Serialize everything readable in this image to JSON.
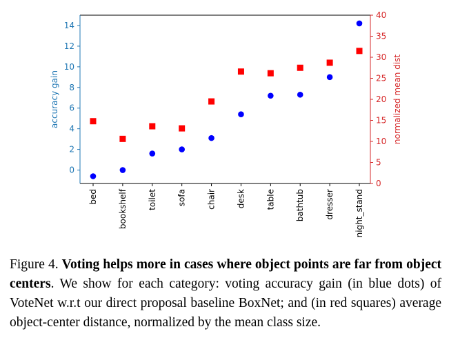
{
  "chart_data": {
    "type": "scatter",
    "categories": [
      "bed",
      "bookshelf",
      "toilet",
      "sofa",
      "chair",
      "desk",
      "table",
      "bathtub",
      "dresser",
      "night_stand"
    ],
    "series": [
      {
        "name": "accuracy gain",
        "axis": "left",
        "marker": "circle",
        "color": "#0000ff",
        "values": [
          -0.6,
          0.0,
          1.6,
          2.0,
          3.1,
          5.4,
          7.2,
          7.3,
          9.0,
          14.2
        ]
      },
      {
        "name": "normalized mean dist",
        "axis": "right",
        "marker": "square",
        "color": "#ff0000",
        "values": [
          14.8,
          10.6,
          13.6,
          13.1,
          19.5,
          26.6,
          26.2,
          27.5,
          28.7,
          31.5
        ]
      }
    ],
    "ylabel_left": "accuracy gain",
    "ylabel_right": "normalized mean dist",
    "ylim_left": [
      -1.3,
      15.0
    ],
    "ylim_right": [
      0,
      40
    ],
    "yticks_left": [
      "0",
      "2",
      "4",
      "6",
      "8",
      "10",
      "12",
      "14"
    ],
    "yticks_right": [
      "0",
      "5",
      "10",
      "15",
      "20",
      "25",
      "30",
      "35",
      "40"
    ],
    "left_axis_color": "#1f77b4",
    "right_axis_color": "#d62728",
    "grid": false
  },
  "caption": {
    "prefix": "Figure 4.",
    "bold": "Voting helps more in cases where object points are far from object centers",
    "rest": ". We show for each category: voting accuracy gain (in blue dots) of VoteNet w.r.t our direct proposal baseline BoxNet; and (in red squares) average object-center distance, normalized by the mean class size."
  }
}
